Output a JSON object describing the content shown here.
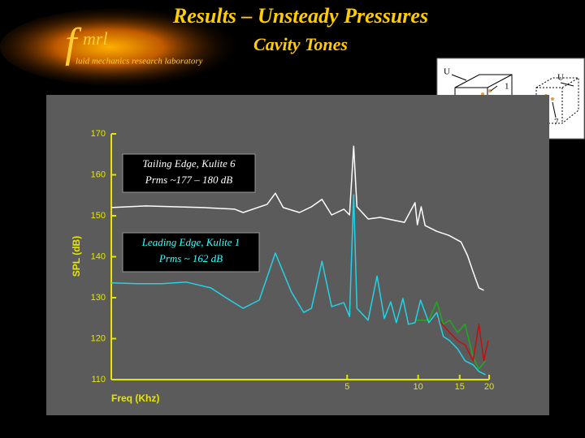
{
  "slide": {
    "title": "Results – Unsteady Pressures",
    "subtitle": "Cavity Tones",
    "logo_letter": "f",
    "logo_name": "mrl",
    "logo_tagline": "luid mechanics research laboratory",
    "inset_labels": [
      "U",
      "1",
      "5",
      "3",
      "4",
      "2",
      "U",
      "6",
      "7"
    ]
  },
  "chart_data": {
    "type": "line",
    "xlabel": "Freq (Khz)",
    "ylabel": "SPL (dB)",
    "xscale": "log",
    "xlim": [
      0.5,
      20
    ],
    "ylim": [
      110,
      170
    ],
    "xticks": [
      5,
      10,
      15,
      20
    ],
    "yticks": [
      110,
      120,
      130,
      140,
      150,
      160,
      170
    ],
    "axis_color": "#e6e600",
    "annotations": [
      {
        "lines": [
          "Tailing Edge, Kulite 6",
          "Prms ~177 – 180 dB"
        ],
        "color": "#ffffff"
      },
      {
        "lines": [
          "Leading Edge, Kulite 1",
          "Prms ~ 162 dB"
        ],
        "color": "#33ffff"
      }
    ],
    "series": [
      {
        "color": "#ffffff",
        "x": [
          0.5,
          0.7,
          1.22,
          1.67,
          1.81,
          2.29,
          2.48,
          2.68,
          3.14,
          3.53,
          3.91,
          4.3,
          4.84,
          5.12,
          5.33,
          5.5,
          6.14,
          6.9,
          8.08,
          8.75,
          9.7,
          9.93,
          10.3,
          10.7,
          12.0,
          13.5,
          15.2,
          16.2,
          17.1,
          18.1,
          19.0
        ],
        "values": [
          152,
          152.4,
          152,
          151.6,
          150.8,
          152.8,
          155.5,
          152,
          150.8,
          152.2,
          154,
          150.2,
          151.6,
          150.2,
          167,
          152.2,
          149.2,
          149.6,
          148.8,
          148.4,
          153.2,
          147.8,
          152.2,
          147.6,
          146.2,
          145.2,
          143.6,
          140.3,
          136.3,
          132.4,
          131.8
        ]
      },
      {
        "color": "#22d3e6",
        "x": [
          0.5,
          0.65,
          0.82,
          1.04,
          1.32,
          1.55,
          1.81,
          2.12,
          2.48,
          2.9,
          3.27,
          3.53,
          3.91,
          4.3,
          4.84,
          5.12,
          5.33,
          5.5,
          6.14,
          6.7,
          7.19,
          7.65,
          8.08,
          8.62,
          9.1,
          9.7,
          10.24,
          11.1,
          12.0,
          12.8,
          13.6,
          14.7,
          15.8,
          17.1,
          18.1,
          19.3
        ],
        "values": [
          133.6,
          133.4,
          133.4,
          133.8,
          132.4,
          129.8,
          127.4,
          129.4,
          140.9,
          131.4,
          126.4,
          127.4,
          138.9,
          127.8,
          128.8,
          125.4,
          155.1,
          127.4,
          124.5,
          135.3,
          124.9,
          129,
          123.9,
          129.8,
          123.5,
          123.9,
          129.4,
          123.9,
          126.4,
          120.5,
          119.5,
          117.5,
          114.6,
          113.6,
          112,
          111.2
        ]
      },
      {
        "color": "#1faa1f",
        "x": [
          9.7,
          11.1,
          12.0,
          12.8,
          13.6,
          14.7,
          15.8,
          17.1,
          18.1,
          19.3
        ],
        "values": [
          124.5,
          124.5,
          129,
          123.5,
          124.5,
          121.5,
          123.5,
          115.5,
          112.6,
          114.6
        ]
      },
      {
        "color": "#c01010",
        "x": [
          12.0,
          13.6,
          14.7,
          15.8,
          17.1,
          18.1,
          19.0,
          19.8
        ],
        "values": [
          125,
          121.5,
          119.5,
          118.5,
          114.6,
          123.5,
          114.6,
          119.5
        ]
      }
    ]
  }
}
